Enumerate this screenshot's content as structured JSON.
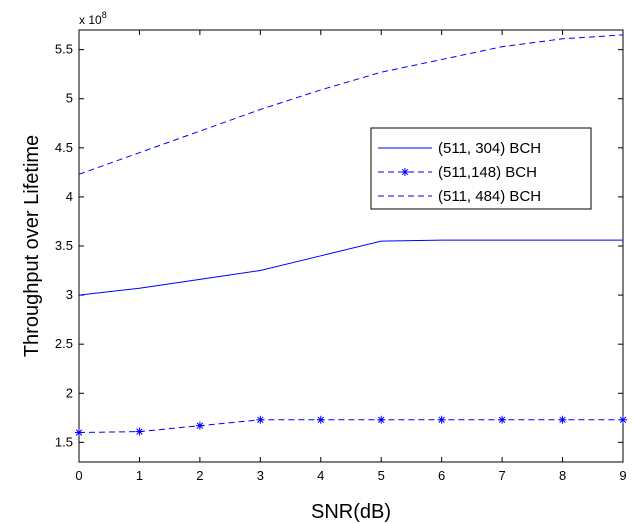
{
  "chart_data": {
    "type": "line",
    "title": "",
    "xlabel": "SNR(dB)",
    "ylabel": "Throughput over Lifetime",
    "xlim": [
      0,
      9
    ],
    "ylim": [
      1.3,
      5.7
    ],
    "x_ticks": [
      0,
      1,
      2,
      3,
      4,
      5,
      6,
      7,
      8,
      9
    ],
    "y_ticks": [
      1.5,
      2,
      2.5,
      3,
      3.5,
      4,
      4.5,
      5,
      5.5
    ],
    "y_exponent_label": "x 10",
    "y_exponent_power": "8",
    "grid": false,
    "legend_position": "right",
    "x": [
      0,
      1,
      2,
      3,
      4,
      5,
      6,
      7,
      8,
      9
    ],
    "series": [
      {
        "name": "(511, 304) BCH",
        "line_style": "solid",
        "marker": "none",
        "values": [
          3.0,
          3.07,
          3.16,
          3.25,
          3.4,
          3.55,
          3.56,
          3.56,
          3.56,
          3.56
        ]
      },
      {
        "name": "(511,148) BCH",
        "line_style": "dashed",
        "marker": "asterisk",
        "values": [
          1.6,
          1.61,
          1.67,
          1.73,
          1.73,
          1.73,
          1.73,
          1.73,
          1.73,
          1.73
        ]
      },
      {
        "name": "(511, 484) BCH",
        "line_style": "dashed",
        "marker": "none",
        "values": [
          4.23,
          4.45,
          4.67,
          4.89,
          5.09,
          5.27,
          5.4,
          5.53,
          5.61,
          5.65
        ]
      }
    ],
    "colors": {
      "series": "#0000ff",
      "axes": "#000000",
      "background": "#ffffff"
    }
  }
}
